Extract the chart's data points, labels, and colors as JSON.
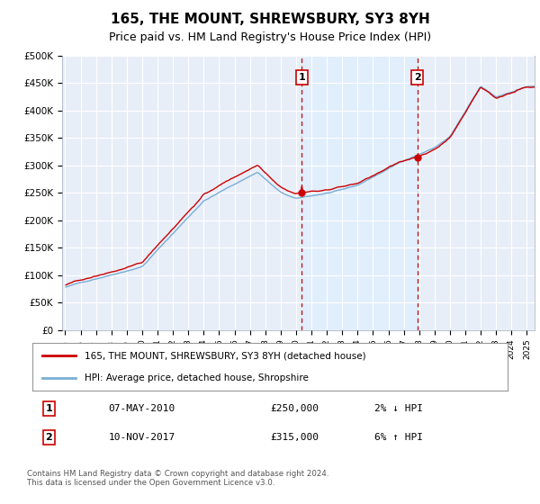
{
  "title": "165, THE MOUNT, SHREWSBURY, SY3 8YH",
  "subtitle": "Price paid vs. HM Land Registry's House Price Index (HPI)",
  "title_fontsize": 11,
  "subtitle_fontsize": 9,
  "ylabel_ticks": [
    "£0",
    "£50K",
    "£100K",
    "£150K",
    "£200K",
    "£250K",
    "£300K",
    "£350K",
    "£400K",
    "£450K",
    "£500K"
  ],
  "ytick_values": [
    0,
    50000,
    100000,
    150000,
    200000,
    250000,
    300000,
    350000,
    400000,
    450000,
    500000
  ],
  "xlim_start": 1995.0,
  "xlim_end": 2025.5,
  "ylim": [
    0,
    500000
  ],
  "hpi_color": "#7aaed6",
  "price_color": "#cc0000",
  "vline_color": "#cc0000",
  "shade_color": "#ddeeff",
  "marker1_year": 2010.37,
  "marker2_year": 2017.87,
  "sale1_price": 250000,
  "sale2_price": 315000,
  "legend_line1": "165, THE MOUNT, SHREWSBURY, SY3 8YH (detached house)",
  "legend_line2": "HPI: Average price, detached house, Shropshire",
  "table_row1_num": "1",
  "table_row1_date": "07-MAY-2010",
  "table_row1_price": "£250,000",
  "table_row1_hpi": "2% ↓ HPI",
  "table_row2_num": "2",
  "table_row2_date": "10-NOV-2017",
  "table_row2_price": "£315,000",
  "table_row2_hpi": "6% ↑ HPI",
  "footnote": "Contains HM Land Registry data © Crown copyright and database right 2024.\nThis data is licensed under the Open Government Licence v3.0.",
  "background_color": "#ffffff",
  "plot_bg_color": "#e8eef8"
}
